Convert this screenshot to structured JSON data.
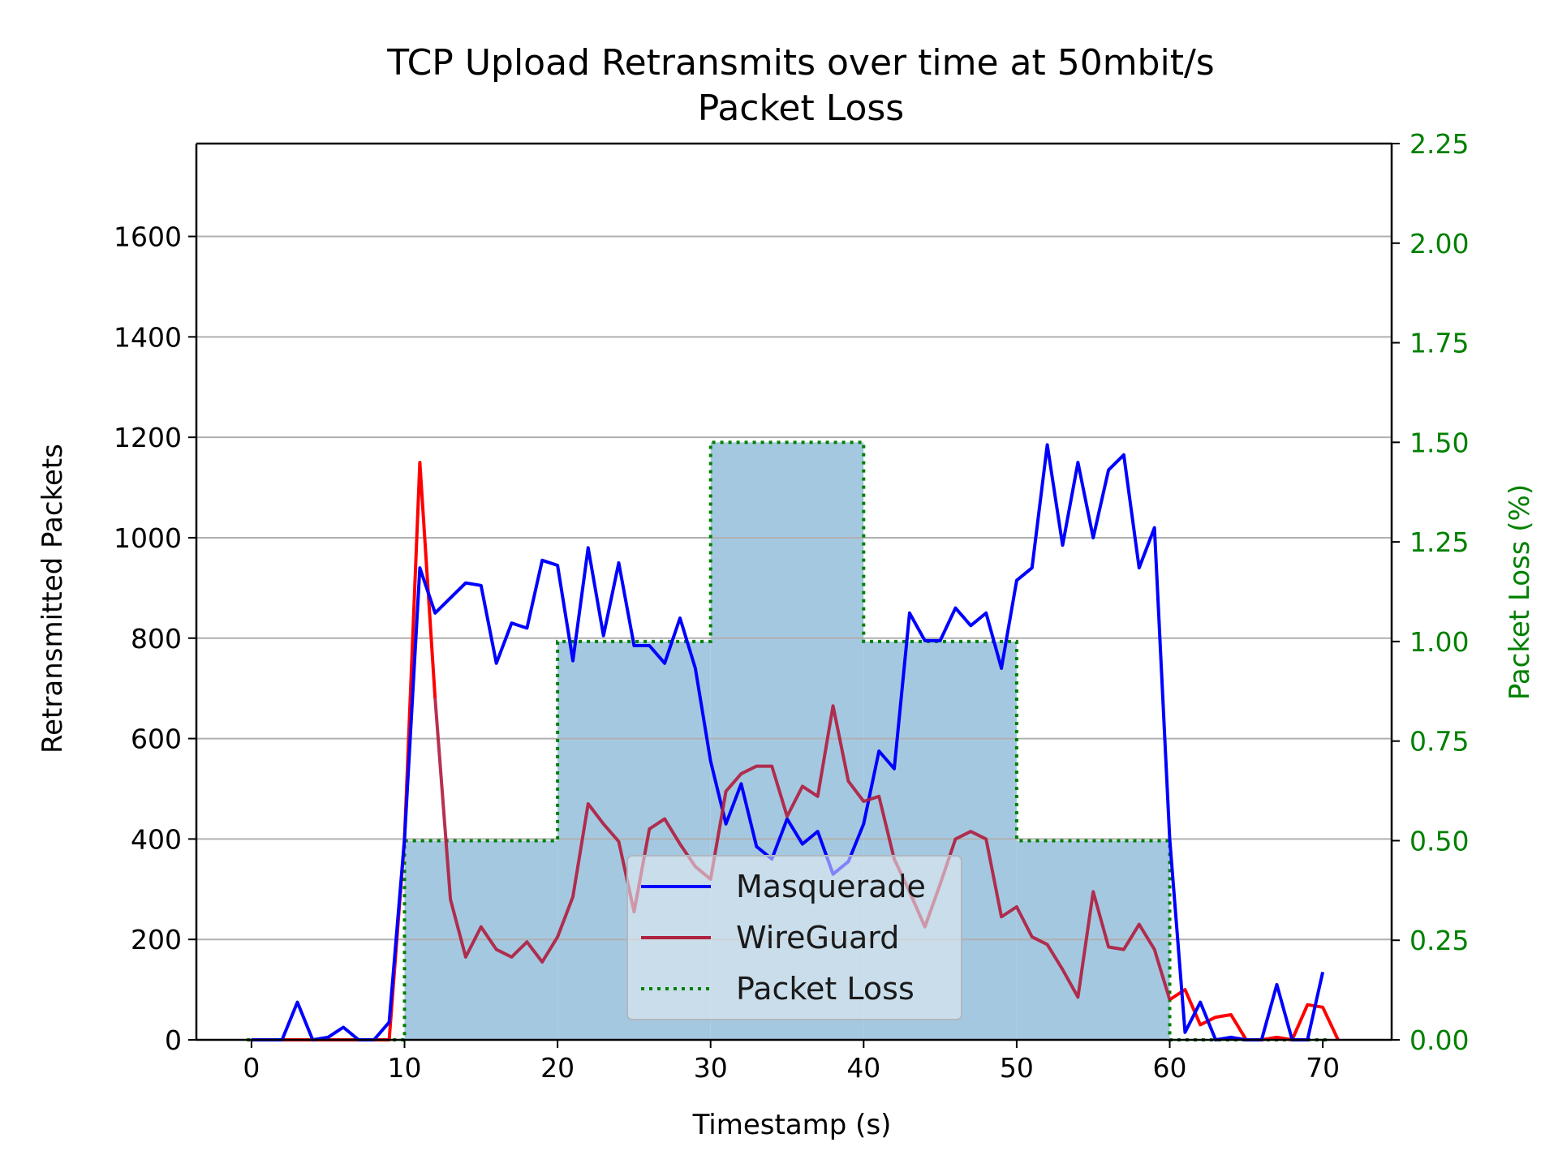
{
  "chart_data": {
    "type": "line",
    "title_line1": "TCP Upload Retransmits over time at 50mbit/s",
    "title_line2": "Packet Loss",
    "xlabel": "Timestamp (s)",
    "ylabel": "Retransmitted Packets",
    "ylabel_right": "Packet Loss (%)",
    "xlim": [
      -3.6,
      74.5
    ],
    "ylim": [
      0,
      1785
    ],
    "ylim_right": [
      0,
      2.25
    ],
    "x_ticks": [
      0,
      10,
      20,
      30,
      40,
      50,
      60,
      70
    ],
    "y_ticks": [
      0,
      200,
      400,
      600,
      800,
      1000,
      1200,
      1400,
      1600
    ],
    "y_ticks_right": [
      "0.00",
      "0.25",
      "0.50",
      "0.75",
      "1.00",
      "1.25",
      "1.50",
      "1.75",
      "2.00",
      "2.25"
    ],
    "grid": "horizontal",
    "legend_position": "lower-center",
    "x": [
      0,
      1,
      2,
      3,
      4,
      5,
      6,
      7,
      8,
      9,
      10,
      11,
      12,
      13,
      14,
      15,
      16,
      17,
      18,
      19,
      20,
      21,
      22,
      23,
      24,
      25,
      26,
      27,
      28,
      29,
      30,
      31,
      32,
      33,
      34,
      35,
      36,
      37,
      38,
      39,
      40,
      41,
      42,
      43,
      44,
      45,
      46,
      47,
      48,
      49,
      50,
      51,
      52,
      53,
      54,
      55,
      56,
      57,
      58,
      59,
      60,
      61,
      62,
      63,
      64,
      65,
      66,
      67,
      68,
      69,
      70,
      71
    ],
    "series": [
      {
        "name": "Masquerade",
        "color": "#0000ff",
        "axis": "left",
        "values": [
          0,
          0,
          0,
          75,
          0,
          5,
          25,
          0,
          0,
          35,
          400,
          940,
          850,
          880,
          910,
          905,
          750,
          830,
          820,
          955,
          945,
          755,
          980,
          805,
          950,
          785,
          785,
          750,
          840,
          740,
          555,
          430,
          510,
          385,
          360,
          440,
          390,
          415,
          330,
          355,
          430,
          575,
          540,
          850,
          795,
          795,
          860,
          825,
          850,
          740,
          915,
          940,
          1185,
          985,
          1150,
          1000,
          1135,
          1165,
          940,
          1020,
          400,
          15,
          75,
          0,
          5,
          0,
          0,
          110,
          0,
          0,
          135,
          null
        ]
      },
      {
        "name": "WireGuard",
        "color": "#b02040",
        "color_early": "#ff0000",
        "axis": "left",
        "values": [
          0,
          0,
          0,
          0,
          0,
          0,
          0,
          0,
          0,
          0,
          400,
          1150,
          680,
          280,
          165,
          225,
          180,
          165,
          195,
          155,
          205,
          285,
          470,
          430,
          395,
          255,
          420,
          440,
          390,
          345,
          320,
          495,
          530,
          545,
          545,
          445,
          505,
          485,
          665,
          515,
          475,
          485,
          360,
          295,
          225,
          310,
          400,
          415,
          400,
          245,
          265,
          205,
          190,
          140,
          85,
          295,
          185,
          180,
          230,
          180,
          80,
          100,
          30,
          45,
          50,
          0,
          0,
          5,
          0,
          70,
          65,
          0
        ]
      },
      {
        "name": "Packet Loss",
        "color": "#008000",
        "fill": "#a5c8e1",
        "axis": "right",
        "steps": [
          {
            "x0": -0.3,
            "x1": 10,
            "value": 0
          },
          {
            "x0": 10,
            "x1": 20,
            "value": 0.5
          },
          {
            "x0": 20,
            "x1": 30,
            "value": 1.0
          },
          {
            "x0": 30,
            "x1": 40,
            "value": 1.5
          },
          {
            "x0": 40,
            "x1": 50,
            "value": 1.0
          },
          {
            "x0": 50,
            "x1": 60,
            "value": 0.5
          },
          {
            "x0": 60,
            "x1": 70.3,
            "value": 0
          }
        ]
      }
    ]
  }
}
